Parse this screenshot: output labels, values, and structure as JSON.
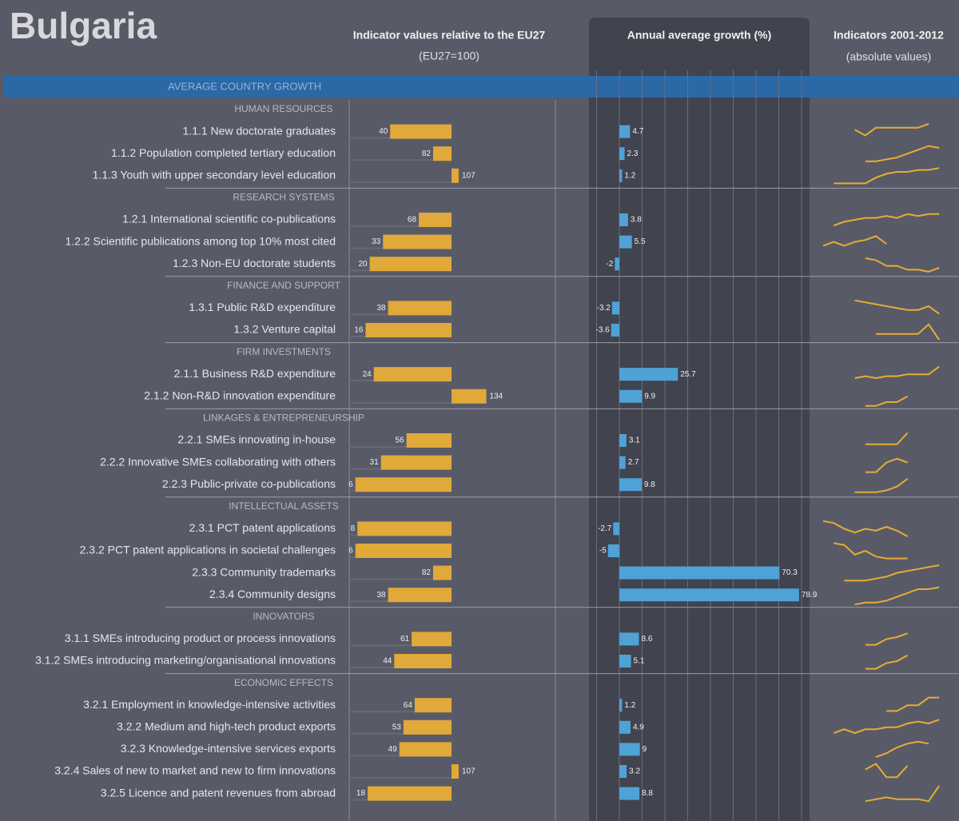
{
  "header": {
    "title": "Bulgaria",
    "col1_title": "Indicator values relative to the EU27",
    "col1_subtitle": "(EU27=100)",
    "col2_title": "Annual average growth (%)",
    "col3_title": "Indicators 2001-2012",
    "col3_subtitle": "(absolute values)"
  },
  "band": "AVERAGE COUNTRY GROWTH",
  "growth_ticks": [
    -10,
    0,
    10,
    20,
    30,
    40,
    50,
    60,
    70,
    80
  ],
  "sections": [
    {
      "name": "HUMAN RESOURCES",
      "rows": [
        {
          "label": "1.1.1 New doctorate graduates",
          "relative": 40,
          "growth": 4.7,
          "trend": [
            null,
            null,
            null,
            6,
            3,
            7,
            7,
            7,
            7,
            7,
            9,
            null
          ]
        },
        {
          "label": "1.1.2 Population completed tertiary education",
          "relative": 82,
          "growth": 2.3,
          "trend": [
            null,
            null,
            null,
            null,
            1,
            1,
            2,
            3,
            5,
            7,
            9,
            8
          ]
        },
        {
          "label": "1.1.3 Youth with upper secondary level education",
          "relative": 107,
          "growth": 1.2,
          "trend": [
            null,
            1,
            1,
            1,
            1,
            4,
            6,
            7,
            7,
            8,
            8,
            9
          ]
        }
      ]
    },
    {
      "name": "RESEARCH SYSTEMS",
      "rows": [
        {
          "label": "1.2.1 International scientific co-publications",
          "relative": 68,
          "growth": 3.8,
          "trend": [
            null,
            2,
            4,
            5,
            6,
            6,
            7,
            6,
            8,
            7,
            8,
            8
          ]
        },
        {
          "label": "1.2.2 Scientific publications among top 10% most cited",
          "relative": 33,
          "growth": 5.5,
          "trend": [
            3,
            5,
            3,
            5,
            6,
            8,
            4,
            null,
            null,
            null,
            null,
            null
          ]
        },
        {
          "label": "1.2.3 Non-EU doctorate students",
          "relative": 20,
          "growth": -2,
          "trend": [
            null,
            null,
            null,
            null,
            8,
            7,
            4,
            4,
            2,
            2,
            1,
            3
          ]
        }
      ]
    },
    {
      "name": "FINANCE AND SUPPORT",
      "rows": [
        {
          "label": "1.3.1 Public R&D expenditure",
          "relative": 38,
          "growth": -3.2,
          "trend": [
            null,
            null,
            null,
            9,
            8,
            7,
            6,
            5,
            4,
            4,
            6,
            2
          ]
        },
        {
          "label": "1.3.2 Venture capital",
          "relative": 16,
          "growth": -3.6,
          "trend": [
            null,
            null,
            null,
            null,
            null,
            3,
            3,
            3,
            3,
            3,
            8,
            0
          ]
        }
      ]
    },
    {
      "name": "FIRM INVESTMENTS",
      "rows": [
        {
          "label": "2.1.1 Business R&D expenditure",
          "relative": 24,
          "growth": 25.7,
          "trend": [
            null,
            null,
            null,
            3,
            4,
            3,
            4,
            4,
            5,
            5,
            5,
            9
          ]
        },
        {
          "label": "2.1.2 Non-R&D innovation expenditure",
          "relative": 134,
          "growth": 9.9,
          "trend": [
            null,
            null,
            null,
            null,
            0,
            0,
            2,
            2,
            5,
            null,
            null,
            null
          ]
        }
      ]
    },
    {
      "name": "LINKAGES & ENTREPRENEURSHIP",
      "rows": [
        {
          "label": "2.2.1 SMEs innovating in-house",
          "relative": 56,
          "growth": 3.1,
          "trend": [
            null,
            null,
            null,
            null,
            3,
            3,
            3,
            3,
            9,
            null,
            null,
            null
          ]
        },
        {
          "label": "2.2.2 Innovative SMEs collaborating with others",
          "relative": 31,
          "growth": 2.7,
          "trend": [
            null,
            null,
            null,
            null,
            0,
            0,
            5,
            7,
            5,
            null,
            null,
            null
          ]
        },
        {
          "label": "2.2.3 Public-private co-publications",
          "relative": 6,
          "growth": 9.8,
          "trend": [
            null,
            null,
            null,
            1,
            1,
            1,
            2,
            4,
            8,
            null,
            null,
            null
          ]
        }
      ]
    },
    {
      "name": "INTELLECTUAL ASSETS",
      "rows": [
        {
          "label": "2.3.1 PCT patent applications",
          "relative": 8,
          "growth": -2.7,
          "trend": [
            9,
            8,
            5,
            3,
            5,
            4,
            6,
            4,
            1,
            null,
            null,
            null
          ]
        },
        {
          "label": "2.3.2 PCT patent applications in societal challenges",
          "relative": 6,
          "growth": -5,
          "trend": [
            null,
            9,
            8,
            3,
            5,
            2,
            1,
            1,
            1,
            null,
            null,
            null
          ]
        },
        {
          "label": "2.3.3 Community trademarks",
          "relative": 82,
          "growth": 70.3,
          "trend": [
            null,
            null,
            1,
            1,
            1,
            2,
            3,
            5,
            6,
            7,
            8,
            9
          ]
        },
        {
          "label": "2.3.4 Community designs",
          "relative": 38,
          "growth": 78.9,
          "trend": [
            null,
            null,
            null,
            0,
            1,
            1,
            2,
            4,
            6,
            8,
            8,
            9
          ]
        }
      ]
    },
    {
      "name": "INNOVATORS",
      "rows": [
        {
          "label": "3.1.1 SMEs introducing product or process innovations",
          "relative": 61,
          "growth": 8.6,
          "trend": [
            null,
            null,
            null,
            null,
            2,
            2,
            5,
            6,
            8,
            null,
            null,
            null
          ]
        },
        {
          "label": "3.1.2 SMEs introducing marketing/organisational innovations",
          "relative": 44,
          "growth": 5.1,
          "trend": [
            null,
            null,
            null,
            null,
            1,
            1,
            4,
            5,
            8,
            null,
            null,
            null
          ]
        }
      ]
    },
    {
      "name": "ECONOMIC EFFECTS",
      "rows": [
        {
          "label": "3.2.1 Employment in knowledge-intensive activities",
          "relative": 64,
          "growth": 1.2,
          "trend": [
            null,
            null,
            null,
            null,
            null,
            null,
            2,
            2,
            5,
            5,
            9,
            9
          ]
        },
        {
          "label": "3.2.2 Medium and high-tech product exports",
          "relative": 53,
          "growth": 4.9,
          "trend": [
            null,
            2,
            4,
            2,
            4,
            4,
            5,
            5,
            7,
            8,
            7,
            9
          ]
        },
        {
          "label": "3.2.3 Knowledge-intensive services exports",
          "relative": 49,
          "growth": 9,
          "trend": [
            null,
            null,
            null,
            null,
            null,
            1,
            3,
            6,
            8,
            9,
            8,
            null
          ]
        },
        {
          "label": "3.2.4 Sales of new to market and new to firm innovations",
          "relative": 107,
          "growth": 3.2,
          "trend": [
            null,
            null,
            null,
            null,
            6,
            9,
            2,
            2,
            8,
            null,
            null,
            null
          ]
        },
        {
          "label": "3.2.5 Licence and patent revenues from abroad",
          "relative": 18,
          "growth": 8.8,
          "trend": [
            null,
            null,
            null,
            null,
            1,
            2,
            3,
            2,
            2,
            2,
            1,
            9
          ]
        }
      ]
    }
  ]
}
